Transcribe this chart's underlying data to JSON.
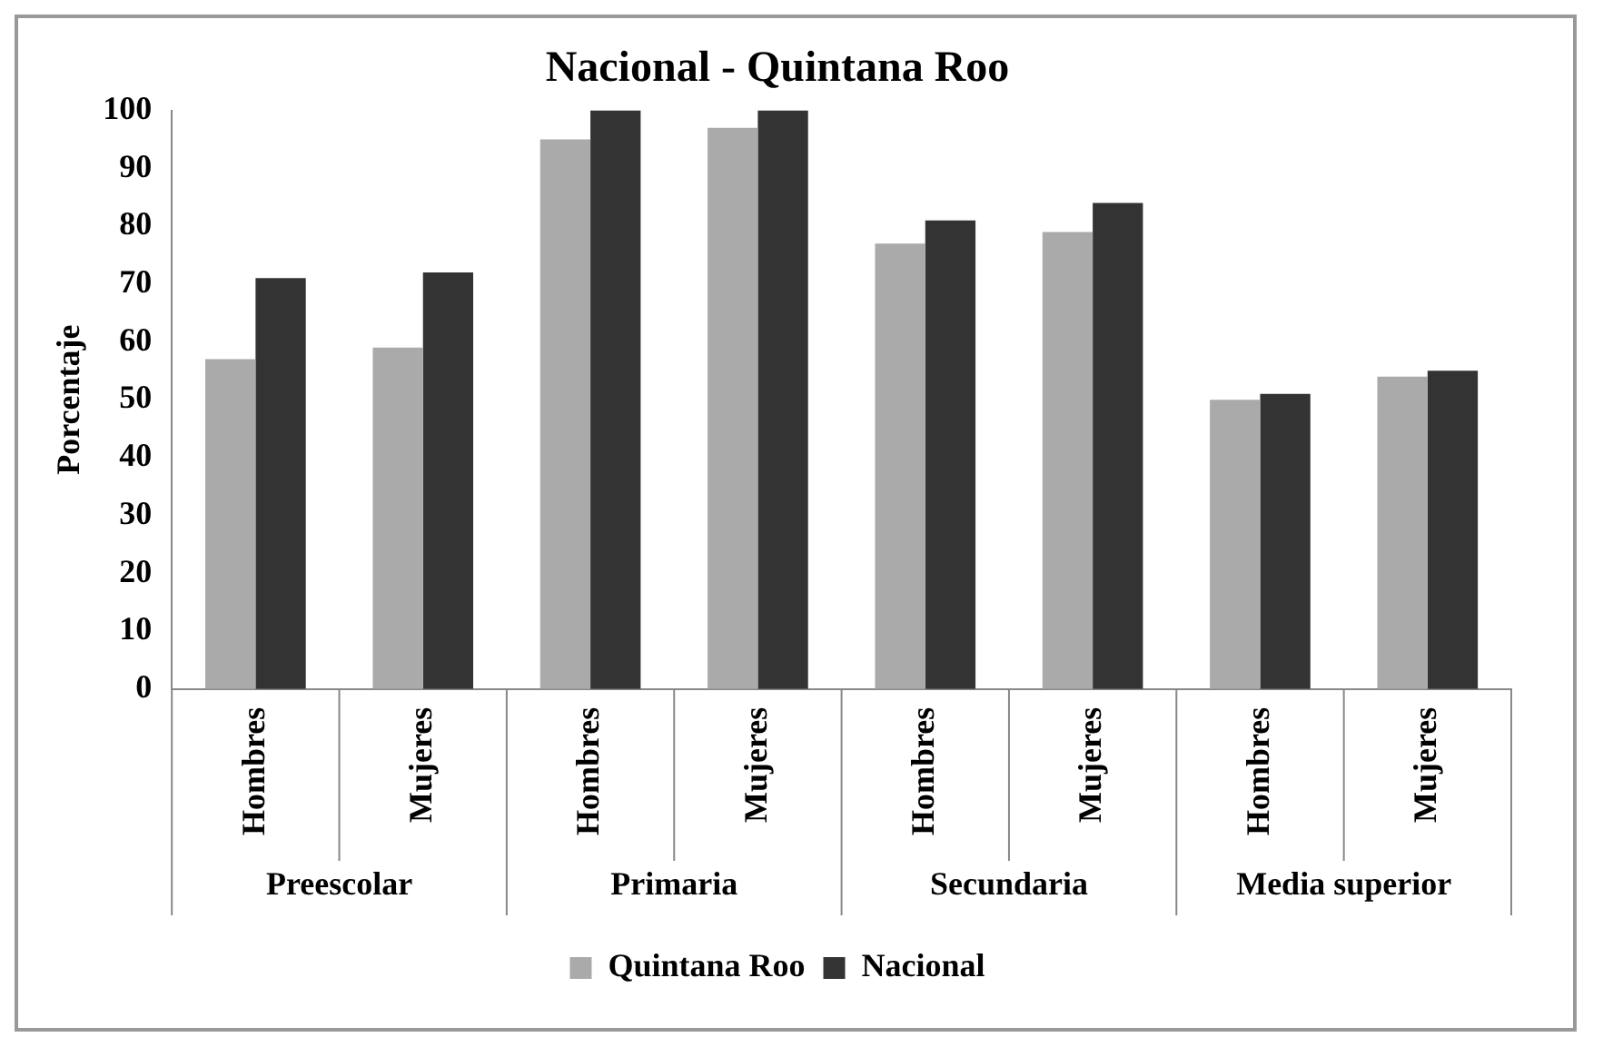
{
  "chart_data": {
    "type": "bar",
    "title": "Nacional - Quintana Roo",
    "ylabel": "Porcentaje",
    "categories": [
      "Hombres",
      "Mujeres",
      "Hombres",
      "Mujeres",
      "Hombres",
      "Mujeres",
      "Hombres",
      "Mujeres"
    ],
    "annotations": [
      "Preescolar",
      "Primaria",
      "Secundaria",
      "Media superior"
    ],
    "series": [
      {
        "name": "Quintana Roo",
        "color": "#aaaaaa",
        "values": [
          57,
          59,
          95,
          97,
          77,
          79,
          50,
          54
        ]
      },
      {
        "name": "Nacional",
        "color": "#333333",
        "values": [
          71,
          72,
          100,
          100,
          81,
          84,
          51,
          55
        ]
      }
    ],
    "ylim": [
      0,
      100
    ],
    "yticks": [
      0,
      10,
      20,
      30,
      40,
      50,
      60,
      70,
      80,
      90,
      100
    ],
    "grid": false,
    "legend": "bottom"
  }
}
